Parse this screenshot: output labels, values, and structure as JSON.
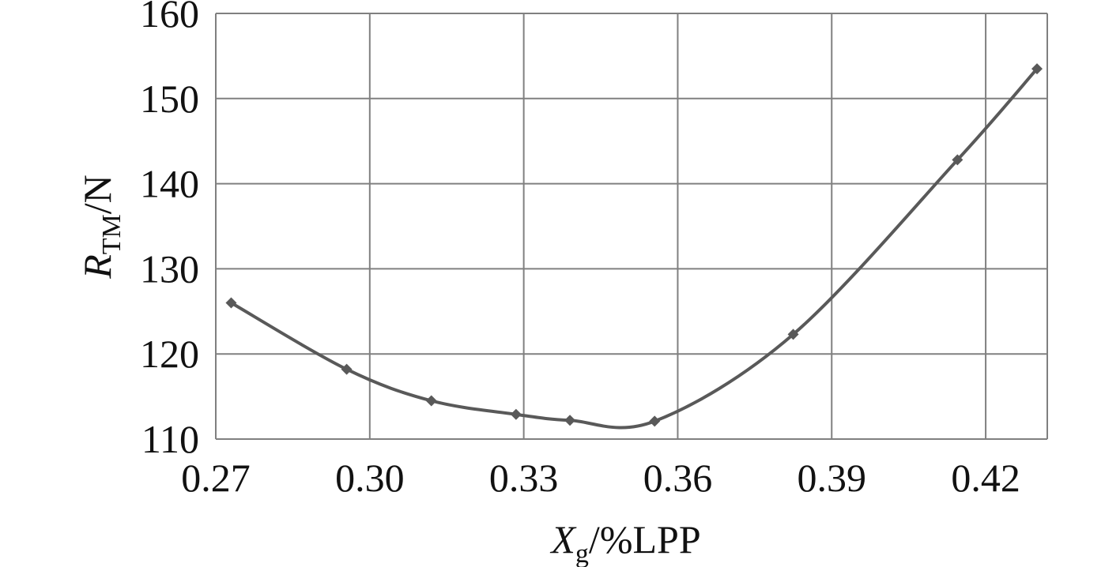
{
  "chart_data": {
    "type": "line",
    "title": "",
    "xlabel": {
      "main": "X",
      "sub": "g",
      "suffix": "/%LPP"
    },
    "ylabel": {
      "main": "R",
      "sub": "TM",
      "suffix": "/N"
    },
    "xlim": [
      0.27,
      0.432
    ],
    "ylim": [
      110,
      160
    ],
    "x_ticks": [
      "0.27",
      "0.30",
      "0.33",
      "0.36",
      "0.39",
      "0.42"
    ],
    "y_ticks": [
      "110",
      "120",
      "130",
      "140",
      "150",
      "160"
    ],
    "grid": true,
    "smooth": true,
    "legend": "none",
    "series": [
      {
        "x": [
          0.273,
          0.2955,
          0.312,
          0.3285,
          0.339,
          0.3555,
          0.3825,
          0.4145,
          0.43
        ],
        "y": [
          126.0,
          118.2,
          114.5,
          112.9,
          112.2,
          112.1,
          122.3,
          142.8,
          153.5
        ],
        "color": "#595959",
        "marker": "diamond"
      }
    ]
  }
}
